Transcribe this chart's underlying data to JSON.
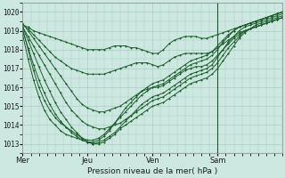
{
  "title": "Pression niveau de la mer( hPa )",
  "ylim": [
    1012.5,
    1020.5
  ],
  "yticks": [
    1013,
    1014,
    1015,
    1016,
    1017,
    1018,
    1019,
    1020
  ],
  "xtick_labels": [
    "Mer",
    "Jeu",
    "Ven",
    "Sam"
  ],
  "xtick_positions": [
    0,
    48,
    96,
    144
  ],
  "xlim": [
    0,
    192
  ],
  "bg_color": "#cce8e0",
  "grid_color": "#aaccc4",
  "line_color": "#1a5c2a",
  "vline_x": 144,
  "n_points": 49,
  "series": [
    [
      1019.3,
      1019.2,
      1019.0,
      1018.9,
      1018.8,
      1018.7,
      1018.6,
      1018.5,
      1018.4,
      1018.3,
      1018.2,
      1018.1,
      1018.0,
      1018.0,
      1018.0,
      1018.0,
      1018.1,
      1018.2,
      1018.2,
      1018.2,
      1018.1,
      1018.1,
      1018.0,
      1017.9,
      1017.8,
      1017.8,
      1018.0,
      1018.3,
      1018.5,
      1018.6,
      1018.7,
      1018.7,
      1018.7,
      1018.6,
      1018.6,
      1018.7,
      1018.8,
      1018.9,
      1019.0,
      1019.1,
      1019.2,
      1019.3,
      1019.4,
      1019.5,
      1019.6,
      1019.7,
      1019.8,
      1019.9,
      1020.0
    ],
    [
      1019.3,
      1019.1,
      1018.8,
      1018.5,
      1018.2,
      1017.9,
      1017.6,
      1017.4,
      1017.2,
      1017.0,
      1016.9,
      1016.8,
      1016.7,
      1016.7,
      1016.7,
      1016.7,
      1016.8,
      1016.9,
      1017.0,
      1017.1,
      1017.2,
      1017.3,
      1017.3,
      1017.3,
      1017.2,
      1017.1,
      1017.2,
      1017.4,
      1017.6,
      1017.7,
      1017.8,
      1017.8,
      1017.8,
      1017.8,
      1017.8,
      1017.9,
      1018.1,
      1018.3,
      1018.5,
      1018.7,
      1018.9,
      1019.0,
      1019.1,
      1019.2,
      1019.3,
      1019.4,
      1019.5,
      1019.6,
      1019.7
    ],
    [
      1019.4,
      1019.0,
      1018.6,
      1018.2,
      1017.8,
      1017.4,
      1017.0,
      1016.6,
      1016.2,
      1015.8,
      1015.4,
      1015.1,
      1014.9,
      1014.8,
      1014.7,
      1014.7,
      1014.8,
      1014.9,
      1015.0,
      1015.2,
      1015.4,
      1015.6,
      1015.8,
      1015.9,
      1016.0,
      1016.0,
      1016.1,
      1016.3,
      1016.5,
      1016.7,
      1016.9,
      1017.0,
      1017.1,
      1017.1,
      1017.2,
      1017.4,
      1017.7,
      1018.0,
      1018.3,
      1018.6,
      1018.8,
      1019.0,
      1019.1,
      1019.2,
      1019.3,
      1019.4,
      1019.5,
      1019.6,
      1019.7
    ],
    [
      1019.2,
      1018.7,
      1018.2,
      1017.7,
      1017.2,
      1016.7,
      1016.2,
      1015.7,
      1015.2,
      1014.8,
      1014.5,
      1014.2,
      1014.0,
      1013.9,
      1013.8,
      1013.8,
      1013.9,
      1014.0,
      1014.1,
      1014.3,
      1014.5,
      1014.7,
      1014.9,
      1015.1,
      1015.3,
      1015.4,
      1015.5,
      1015.7,
      1015.9,
      1016.1,
      1016.3,
      1016.5,
      1016.6,
      1016.7,
      1016.8,
      1017.0,
      1017.3,
      1017.7,
      1018.1,
      1018.4,
      1018.7,
      1019.0,
      1019.1,
      1019.2,
      1019.3,
      1019.4,
      1019.5,
      1019.6,
      1019.7
    ],
    [
      1019.2,
      1018.5,
      1017.8,
      1017.1,
      1016.4,
      1015.8,
      1015.2,
      1014.7,
      1014.3,
      1013.9,
      1013.6,
      1013.3,
      1013.1,
      1013.0,
      1013.0,
      1013.1,
      1013.3,
      1013.5,
      1013.8,
      1014.0,
      1014.2,
      1014.4,
      1014.6,
      1014.8,
      1015.0,
      1015.1,
      1015.2,
      1015.4,
      1015.6,
      1015.8,
      1016.0,
      1016.2,
      1016.3,
      1016.4,
      1016.5,
      1016.7,
      1017.0,
      1017.4,
      1017.8,
      1018.2,
      1018.6,
      1018.9,
      1019.1,
      1019.3,
      1019.4,
      1019.5,
      1019.6,
      1019.7,
      1019.8
    ],
    [
      1019.0,
      1018.1,
      1017.2,
      1016.4,
      1015.7,
      1015.1,
      1014.6,
      1014.2,
      1013.9,
      1013.6,
      1013.4,
      1013.2,
      1013.1,
      1013.0,
      1013.1,
      1013.2,
      1013.4,
      1013.6,
      1013.9,
      1014.2,
      1014.5,
      1014.8,
      1015.1,
      1015.3,
      1015.5,
      1015.6,
      1015.7,
      1015.9,
      1016.1,
      1016.3,
      1016.5,
      1016.7,
      1016.8,
      1016.9,
      1017.0,
      1017.2,
      1017.6,
      1018.0,
      1018.4,
      1018.7,
      1019.0,
      1019.2,
      1019.3,
      1019.4,
      1019.5,
      1019.6,
      1019.7,
      1019.8,
      1019.9
    ],
    [
      1019.1,
      1018.0,
      1016.9,
      1016.0,
      1015.3,
      1014.8,
      1014.4,
      1014.1,
      1013.9,
      1013.7,
      1013.5,
      1013.3,
      1013.2,
      1013.2,
      1013.3,
      1013.5,
      1013.8,
      1014.1,
      1014.4,
      1014.7,
      1015.0,
      1015.3,
      1015.6,
      1015.8,
      1016.0,
      1016.1,
      1016.2,
      1016.4,
      1016.6,
      1016.8,
      1017.0,
      1017.2,
      1017.3,
      1017.4,
      1017.5,
      1017.7,
      1018.0,
      1018.4,
      1018.7,
      1019.0,
      1019.2,
      1019.3,
      1019.4,
      1019.5,
      1019.6,
      1019.7,
      1019.8,
      1019.9,
      1020.0
    ],
    [
      1018.8,
      1017.5,
      1016.4,
      1015.5,
      1014.8,
      1014.3,
      1014.0,
      1013.7,
      1013.5,
      1013.4,
      1013.3,
      1013.2,
      1013.1,
      1013.1,
      1013.2,
      1013.4,
      1013.7,
      1014.1,
      1014.5,
      1014.9,
      1015.2,
      1015.5,
      1015.8,
      1016.0,
      1016.2,
      1016.3,
      1016.4,
      1016.6,
      1016.8,
      1017.0,
      1017.2,
      1017.4,
      1017.5,
      1017.6,
      1017.7,
      1017.9,
      1018.2,
      1018.5,
      1018.8,
      1019.0,
      1019.2,
      1019.3,
      1019.4,
      1019.5,
      1019.6,
      1019.7,
      1019.8,
      1019.9,
      1020.0
    ]
  ]
}
